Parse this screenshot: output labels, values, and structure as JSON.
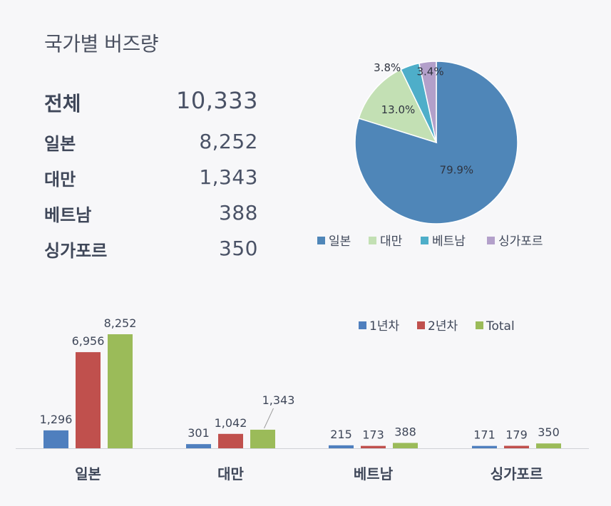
{
  "title": "국가별 버즈량",
  "summary": {
    "total": {
      "label": "전체",
      "value": "10,333"
    },
    "rows": [
      {
        "label": "일본",
        "value": "8,252"
      },
      {
        "label": "대만",
        "value": "1,343"
      },
      {
        "label": "베트남",
        "value": "388"
      },
      {
        "label": "싱가포르",
        "value": "350"
      }
    ]
  },
  "chart_data": [
    {
      "type": "pie",
      "labels": [
        "일본",
        "대만",
        "베트남",
        "싱가포르"
      ],
      "values": [
        79.9,
        13.0,
        3.8,
        3.4
      ],
      "data_labels": [
        "79.9%",
        "13.0%",
        "3.8%",
        "3.4%"
      ],
      "colors": [
        "#4f86b8",
        "#c3e0b4",
        "#4eaec9",
        "#b3a0ca"
      ],
      "legend": "bottom"
    },
    {
      "type": "bar",
      "categories": [
        "일본",
        "대만",
        "베트남",
        "싱가포르"
      ],
      "series": [
        {
          "name": "1년차",
          "values": [
            1296,
            301,
            215,
            171
          ],
          "labels": [
            "1,296",
            "301",
            "215",
            "171"
          ],
          "color": "#4f7fbe"
        },
        {
          "name": "2년차",
          "values": [
            6956,
            1042,
            173,
            179
          ],
          "labels": [
            "6,956",
            "1,042",
            "173",
            "179"
          ],
          "color": "#c0504d"
        },
        {
          "name": "Total",
          "values": [
            8252,
            1343,
            388,
            350
          ],
          "labels": [
            "8,252",
            "1,343",
            "388",
            "350"
          ],
          "color": "#9bbb59"
        }
      ],
      "legend": "top-right",
      "grid": false
    }
  ]
}
